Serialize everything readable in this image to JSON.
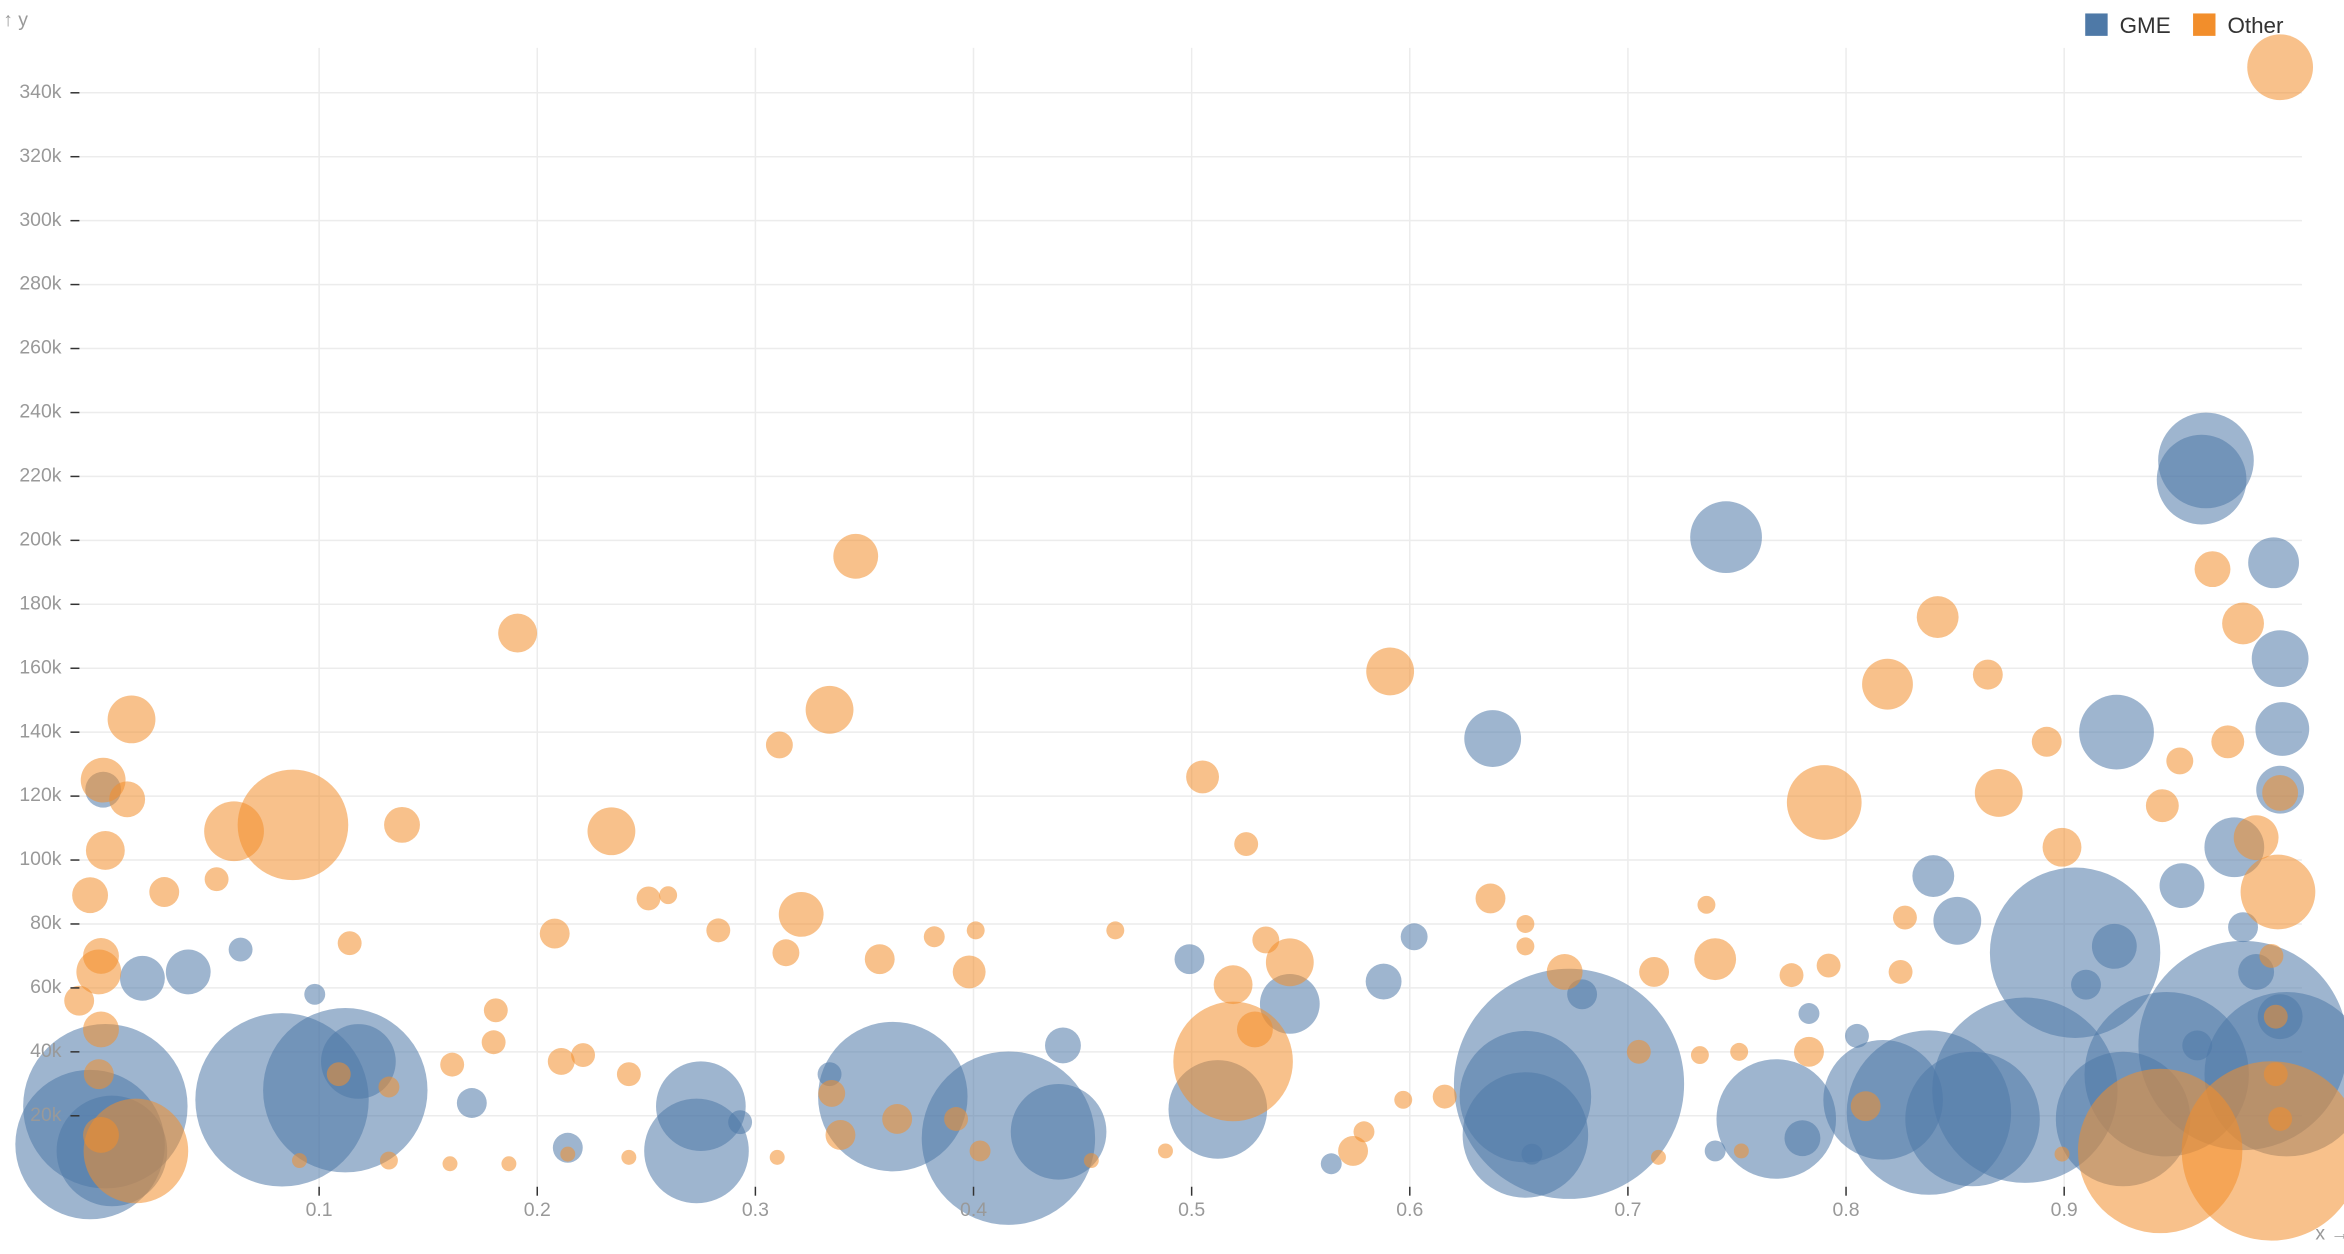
{
  "chart_data": {
    "type": "scatter",
    "x_label": "x →",
    "y_label": "↑ y",
    "xlim": [
      -0.014,
      1.009
    ],
    "ylim": [
      -5000,
      355000
    ],
    "xticks": [
      0.1,
      0.2,
      0.3,
      0.4,
      0.5,
      0.6,
      0.7,
      0.8,
      0.9
    ],
    "yticks": [
      {
        "value": 20000,
        "label": "20k"
      },
      {
        "value": 40000,
        "label": "40k"
      },
      {
        "value": 60000,
        "label": "60k"
      },
      {
        "value": 80000,
        "label": "80k"
      },
      {
        "value": 100000,
        "label": "100k"
      },
      {
        "value": 120000,
        "label": "120k"
      },
      {
        "value": 140000,
        "label": "140k"
      },
      {
        "value": 160000,
        "label": "160k"
      },
      {
        "value": 180000,
        "label": "180k"
      },
      {
        "value": 200000,
        "label": "200k"
      },
      {
        "value": 220000,
        "label": "220k"
      },
      {
        "value": 240000,
        "label": "240k"
      },
      {
        "value": 260000,
        "label": "260k"
      },
      {
        "value": 280000,
        "label": "280k"
      },
      {
        "value": 300000,
        "label": "300k"
      },
      {
        "value": 320000,
        "label": "320k"
      },
      {
        "value": 340000,
        "label": "340k"
      }
    ],
    "grid": true,
    "legend": "top-right",
    "series": [
      {
        "name": "GME",
        "color": "#4e79a7",
        "x": [
          0.965,
          0.963,
          0.745,
          0.996,
          0.999,
          1.0,
          0.924,
          0.638,
          0.999,
          0.001,
          0.84,
          0.905,
          0.851,
          0.954,
          0.978,
          0.602,
          0.588,
          0.499,
          0.545,
          0.923,
          0.91,
          0.441,
          0.805,
          0.673,
          0.653,
          0.653,
          0.882,
          0.838,
          0.817,
          0.858,
          0.768,
          0.947,
          0.982,
          1.002,
          0.927,
          0.512,
          0.416,
          0.363,
          0.439,
          0.275,
          0.273,
          0.112,
          0.083,
          0.118,
          0.002,
          -0.005,
          0.005,
          0.019,
          0.04,
          0.064,
          0.098,
          0.17,
          0.214,
          0.564,
          0.679,
          0.783,
          0.999,
          0.961,
          0.988,
          0.982,
          0.656,
          0.74,
          0.78,
          0.334,
          0.293
        ],
        "values": [
          225000,
          219000,
          201000,
          193000,
          163000,
          141000,
          140000,
          138000,
          122000,
          122000,
          95000,
          71000,
          81000,
          92000,
          104000,
          76000,
          62000,
          69000,
          55000,
          73000,
          61000,
          42000,
          45000,
          30000,
          26000,
          14000,
          28000,
          21000,
          25000,
          19000,
          19000,
          33000,
          42000,
          33000,
          19000,
          22000,
          13000,
          26000,
          15000,
          23000,
          9000,
          28000,
          25000,
          37000,
          23000,
          11000,
          9000,
          63000,
          65000,
          72000,
          58000,
          24000,
          10000,
          5000,
          58000,
          52000,
          51000,
          42000,
          65000,
          79000,
          8000,
          9000,
          13000,
          33000,
          18000
        ],
        "sizes": [
          32,
          30,
          24,
          17,
          19,
          18,
          25,
          19,
          16,
          12,
          14,
          57,
          16,
          15,
          20,
          9,
          12,
          10,
          20,
          15,
          10,
          12,
          8,
          77,
          44,
          42,
          62,
          55,
          40,
          45,
          40,
          55,
          70,
          55,
          45,
          33,
          58,
          50,
          32,
          30,
          35,
          55,
          58,
          25,
          55,
          50,
          37,
          15,
          15,
          8,
          7,
          10,
          10,
          7,
          10,
          7,
          15,
          10,
          12,
          10,
          7,
          7,
          12,
          8,
          8
        ]
      },
      {
        "name": "Other",
        "color": "#f28e2b",
        "x": [
          0.999,
          0.346,
          0.191,
          0.591,
          0.334,
          0.014,
          0.842,
          0.968,
          0.982,
          0.819,
          0.865,
          0.892,
          0.953,
          0.975,
          0.79,
          0.87,
          0.945,
          0.899,
          0.088,
          0.061,
          0.138,
          0.234,
          0.311,
          0.505,
          0.525,
          0.998,
          0.988,
          0.999,
          0.001,
          0.002,
          0.012,
          0.029,
          0.053,
          0.321,
          0.208,
          0.283,
          0.251,
          0.26,
          0.314,
          0.357,
          0.398,
          0.382,
          0.401,
          0.637,
          0.653,
          0.653,
          0.671,
          0.465,
          0.519,
          0.519,
          0.534,
          0.545,
          0.529,
          0.74,
          0.712,
          0.736,
          0.775,
          0.792,
          0.827,
          0.825,
          0.944,
          0.995,
          0.016,
          0.18,
          0.161,
          0.242,
          0.211,
          0.221,
          0.335,
          0.339,
          0.365,
          0.392,
          0.574,
          0.579,
          0.616,
          0.597,
          0.705,
          0.751,
          0.733,
          0.809,
          0.783,
          -0.01,
          -0.001,
          -0.005,
          0.0,
          -0.001,
          0.0,
          0.0,
          0.132,
          0.181,
          0.109,
          0.114,
          0.403,
          0.187,
          0.214,
          0.242,
          0.31,
          0.454,
          0.488,
          0.714,
          0.752,
          0.899,
          0.132,
          0.16,
          0.091,
          0.997,
          0.997,
          0.995,
          0.999
        ],
        "values": [
          348000,
          195000,
          171000,
          159000,
          147000,
          144000,
          176000,
          191000,
          174000,
          155000,
          158000,
          137000,
          131000,
          137000,
          118000,
          121000,
          117000,
          104000,
          111000,
          109000,
          111000,
          109000,
          136000,
          126000,
          105000,
          90000,
          107000,
          121000,
          125000,
          103000,
          119000,
          90000,
          94000,
          83000,
          77000,
          78000,
          88000,
          89000,
          71000,
          69000,
          65000,
          76000,
          78000,
          88000,
          80000,
          73000,
          65000,
          78000,
          37000,
          61000,
          75000,
          68000,
          47000,
          69000,
          65000,
          86000,
          64000,
          67000,
          82000,
          65000,
          9000,
          9000,
          9000,
          43000,
          36000,
          33000,
          37000,
          39000,
          27000,
          14000,
          19000,
          19000,
          9000,
          15000,
          26000,
          25000,
          40000,
          40000,
          39000,
          23000,
          40000,
          56000,
          65000,
          89000,
          47000,
          33000,
          14000,
          70000,
          29000,
          53000,
          33000,
          74000,
          9000,
          5000,
          8000,
          7000,
          7000,
          6000,
          9000,
          7000,
          9000,
          8000,
          6000,
          5000,
          6000,
          51000,
          33000,
          70000,
          19000
        ],
        "sizes": [
          22,
          15,
          13,
          16,
          16,
          16,
          14,
          12,
          14,
          17,
          10,
          10,
          9,
          11,
          25,
          16,
          11,
          13,
          37,
          20,
          12,
          16,
          9,
          11,
          8,
          25,
          15,
          12,
          15,
          13,
          12,
          10,
          8,
          15,
          10,
          8,
          8,
          6,
          9,
          10,
          11,
          7,
          6,
          10,
          6,
          6,
          12,
          6,
          40,
          13,
          9,
          16,
          12,
          14,
          10,
          6,
          8,
          8,
          8,
          8,
          55,
          60,
          35,
          8,
          8,
          8,
          9,
          8,
          9,
          10,
          10,
          8,
          10,
          7,
          8,
          6,
          8,
          6,
          6,
          10,
          10,
          10,
          15,
          12,
          12,
          10,
          12,
          12,
          7,
          8,
          8,
          8,
          7,
          5,
          5,
          5,
          5,
          5,
          5,
          5,
          5,
          5,
          6,
          5,
          5,
          8,
          8,
          8,
          8
        ]
      }
    ]
  }
}
